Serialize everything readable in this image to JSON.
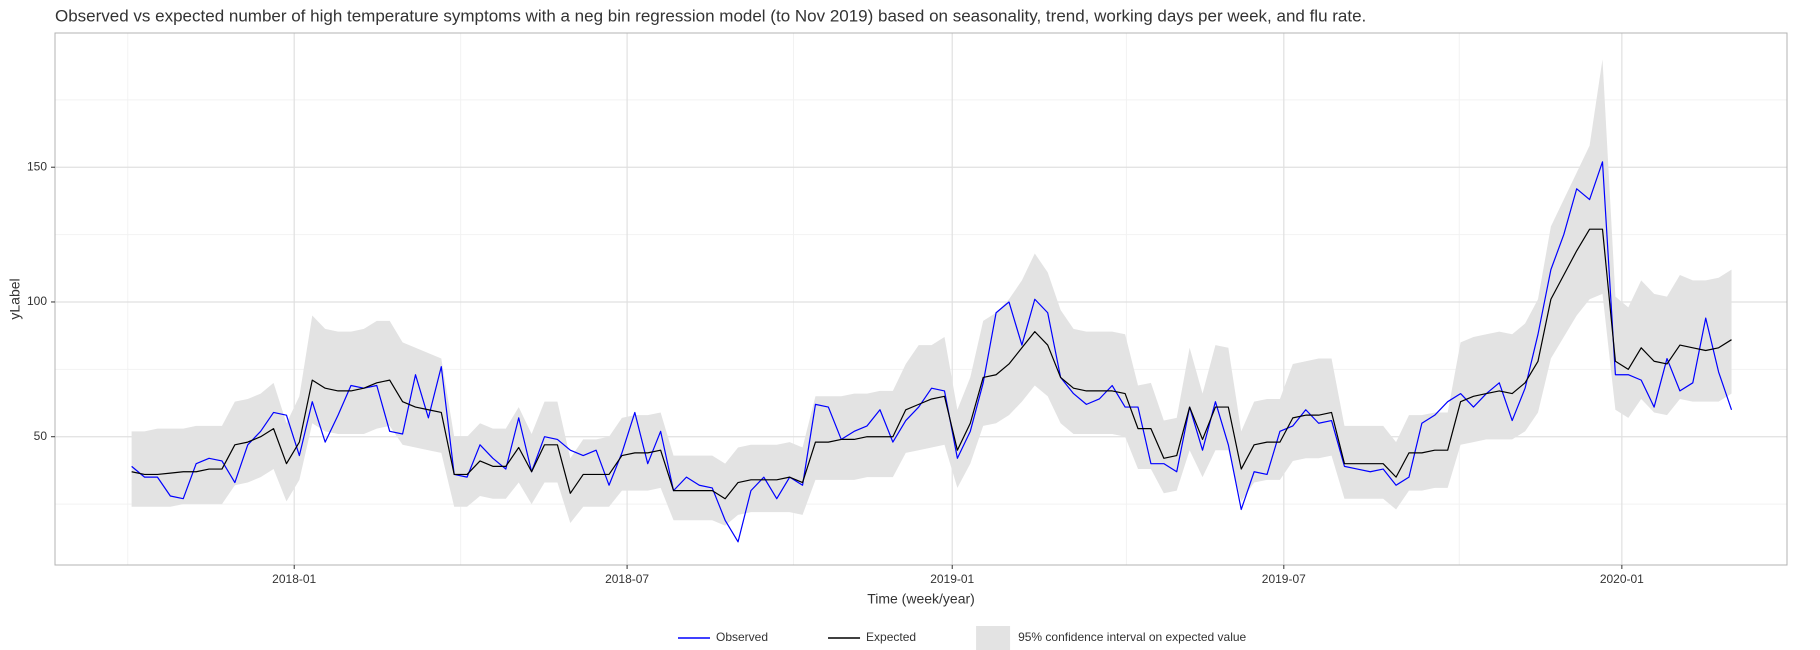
{
  "chart_data": {
    "type": "line",
    "title": "Observed vs expected number of high temperature symptoms with a neg bin regression model (to Nov 2019) based on seasonality, trend, working days per week, and flu rate.",
    "x_label": "Time (week/year)",
    "y_label": "yLabel",
    "x": [
      0,
      1,
      2,
      3,
      4,
      5,
      6,
      7,
      8,
      9,
      10,
      11,
      12,
      13,
      14,
      15,
      16,
      17,
      18,
      19,
      20,
      21,
      22,
      23,
      24,
      25,
      26,
      27,
      28,
      29,
      30,
      31,
      32,
      33,
      34,
      35,
      36,
      37,
      38,
      39,
      40,
      41,
      42,
      43,
      44,
      45,
      46,
      47,
      48,
      49,
      50,
      51,
      52,
      53,
      54,
      55,
      56,
      57,
      58,
      59,
      60,
      61,
      62,
      63,
      64,
      65,
      66,
      67,
      68,
      69,
      70,
      71,
      72,
      73,
      74,
      75,
      76,
      77,
      78,
      79,
      80,
      81,
      82,
      83,
      84,
      85,
      86,
      87,
      88,
      89,
      90,
      91,
      92,
      93,
      94,
      95,
      96,
      97,
      98,
      99,
      100,
      101,
      102,
      103,
      104,
      105,
      106,
      107,
      108,
      109,
      110,
      111,
      112,
      113,
      114,
      115,
      116,
      117,
      118,
      119,
      120,
      121,
      122,
      123,
      124
    ],
    "xlim": [
      -5.94,
      128.3
    ],
    "xticks": [
      {
        "value": 12.6,
        "label": "2018-01"
      },
      {
        "value": 38.4,
        "label": "2018-07"
      },
      {
        "value": 63.6,
        "label": "2019-01"
      },
      {
        "value": 89.3,
        "label": "2019-07"
      },
      {
        "value": 115.5,
        "label": "2020-01"
      }
    ],
    "ylim": [
      2.4,
      199.8
    ],
    "yticks": [
      50,
      100,
      150
    ],
    "grid": true,
    "series": [
      {
        "name": "Observed",
        "color": "#0000ff",
        "values": [
          39,
          35,
          35,
          28,
          27,
          40,
          42,
          41,
          33,
          47,
          52,
          59,
          58,
          43,
          63,
          48,
          58,
          69,
          68,
          69,
          52,
          51,
          73,
          57,
          76,
          36,
          35,
          47,
          42,
          38,
          57,
          37,
          50,
          49,
          45,
          43,
          45,
          32,
          44,
          59,
          40,
          52,
          30,
          35,
          32,
          31,
          19,
          11,
          30,
          35,
          27,
          35,
          32,
          62,
          61,
          49,
          52,
          54,
          60,
          48,
          56,
          61,
          68,
          67,
          42,
          52,
          70,
          96,
          100,
          84,
          101,
          96,
          72,
          66,
          62,
          64,
          69,
          61,
          61,
          40,
          40,
          37,
          61,
          45,
          63,
          47,
          23,
          37,
          36,
          52,
          54,
          60,
          55,
          56,
          39,
          38,
          37,
          38,
          32,
          35,
          55,
          58,
          63,
          66,
          61,
          66,
          70,
          56,
          68,
          88,
          112,
          125,
          142,
          138,
          152,
          73,
          73,
          71,
          61,
          79,
          67,
          70,
          94,
          74,
          60
        ]
      },
      {
        "name": "Expected",
        "color": "#000000",
        "values": [
          37,
          36,
          36,
          36.5,
          37,
          37,
          38,
          38,
          47,
          48,
          50,
          53,
          40,
          48,
          71,
          68,
          67,
          67,
          68,
          70,
          71,
          63,
          61,
          60,
          59,
          36,
          36,
          41,
          39,
          39,
          46,
          37,
          47,
          47,
          29,
          36,
          36,
          36,
          43,
          44,
          44,
          45,
          30,
          30,
          30,
          30,
          27,
          33,
          34,
          34,
          34,
          35,
          33,
          48,
          48,
          49,
          49,
          50,
          50,
          50,
          60,
          62,
          64,
          65,
          45,
          55,
          72,
          73,
          77,
          83,
          89,
          84,
          72,
          68,
          67,
          67,
          67,
          66,
          53,
          53,
          42,
          43,
          61,
          49,
          61,
          61,
          38,
          47,
          48,
          48,
          57,
          58,
          58,
          59,
          40,
          40,
          40,
          40,
          35,
          44,
          44,
          45,
          45,
          63,
          65,
          66,
          67,
          66,
          70,
          78,
          101,
          110,
          119,
          127,
          127,
          78,
          75,
          83,
          78,
          77,
          84,
          83,
          82,
          83,
          86
        ]
      }
    ],
    "band": {
      "name": "95% confidence interval on expected value",
      "color": "#e3e3e3",
      "lower": [
        24,
        24,
        24,
        24,
        25,
        25,
        25,
        25,
        32,
        33,
        35,
        38,
        26,
        34,
        55,
        52,
        51,
        51,
        51,
        53,
        54,
        47,
        46,
        45,
        44,
        24,
        24,
        28,
        27,
        27,
        33,
        25,
        33,
        33,
        18,
        24,
        24,
        24,
        30,
        30,
        30,
        31,
        19,
        19,
        19,
        19,
        17,
        21,
        22,
        22,
        22,
        22,
        21,
        34,
        34,
        34,
        34,
        35,
        35,
        35,
        44,
        45,
        46,
        47,
        31,
        40,
        54,
        55,
        58,
        63,
        69,
        65,
        55,
        51,
        51,
        51,
        51,
        50,
        38,
        38,
        29,
        30,
        45,
        35,
        45,
        45,
        26,
        33,
        34,
        34,
        41,
        42,
        42,
        43,
        27,
        27,
        27,
        27,
        23,
        30,
        30,
        31,
        31,
        47,
        48,
        49,
        49,
        49,
        52,
        59,
        79,
        87,
        95,
        101,
        103,
        60,
        57,
        64,
        59,
        58,
        64,
        63,
        63,
        63,
        66
      ],
      "upper": [
        52,
        52,
        53,
        53,
        53,
        54,
        54,
        54,
        63,
        64,
        66,
        70,
        55,
        65,
        95,
        90,
        89,
        89,
        90,
        93,
        93,
        85,
        83,
        81,
        79,
        50,
        50,
        55,
        53,
        53,
        61,
        51,
        63,
        63,
        42,
        49,
        49,
        50,
        57,
        58,
        58,
        59,
        43,
        43,
        43,
        43,
        40,
        46,
        47,
        47,
        47,
        48,
        46,
        65,
        65,
        65,
        66,
        66,
        67,
        67,
        77,
        84,
        84,
        87,
        60,
        72,
        93,
        96,
        101,
        108,
        118,
        111,
        97,
        90,
        89,
        89,
        89,
        88,
        69,
        70,
        56,
        57,
        83,
        66,
        84,
        83,
        52,
        63,
        64,
        64,
        77,
        78,
        79,
        79,
        54,
        54,
        54,
        54,
        48,
        58,
        58,
        59,
        59,
        85,
        87,
        88,
        89,
        88,
        92,
        101,
        128,
        138,
        148,
        158,
        190,
        102,
        98,
        108,
        103,
        102,
        110,
        108,
        108,
        109,
        112
      ]
    }
  }
}
